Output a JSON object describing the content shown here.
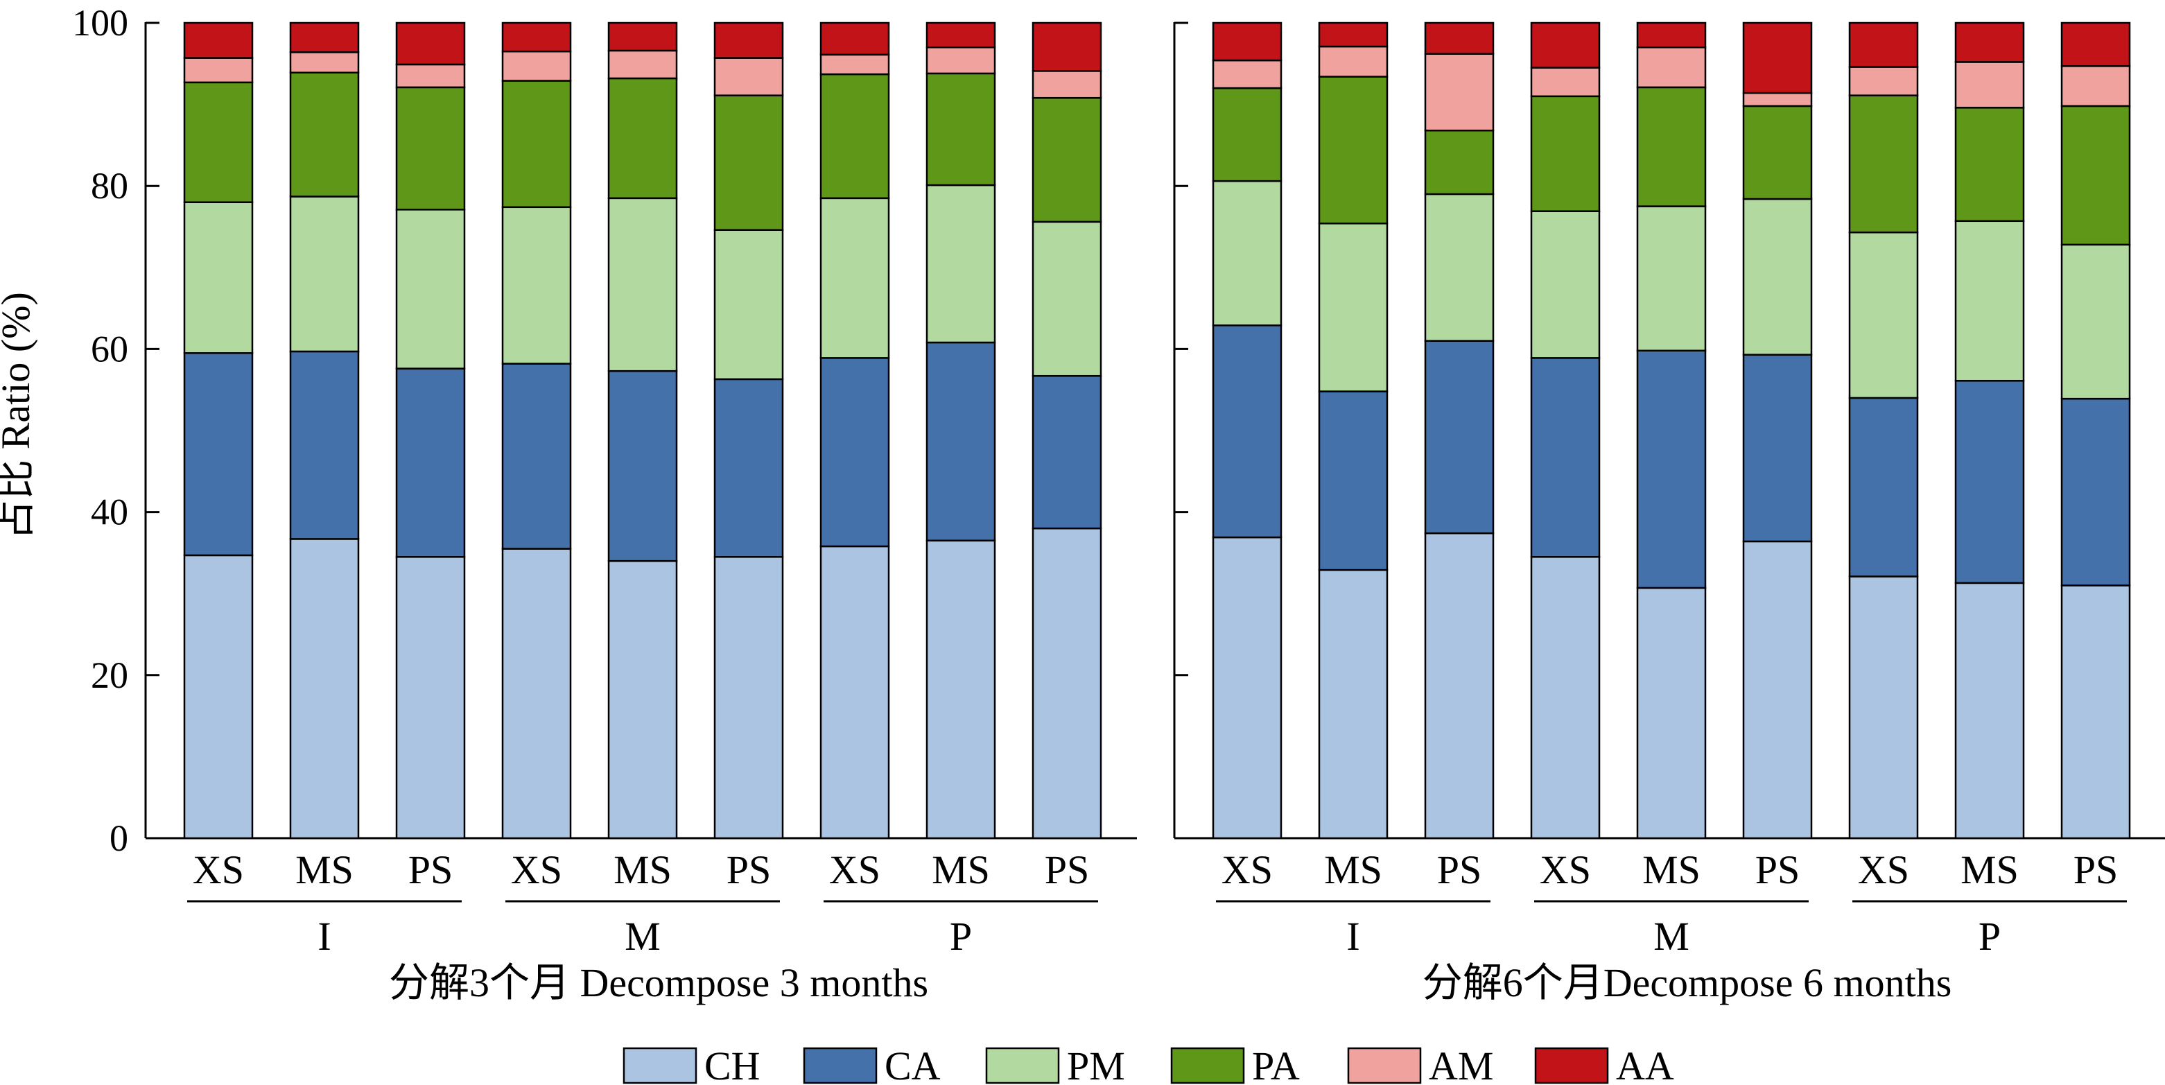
{
  "chart_data": {
    "type": "bar",
    "stacked": true,
    "ylabel": "占比 Ratio (%)",
    "ylim": [
      0,
      100
    ],
    "yticks": [
      0,
      20,
      40,
      60,
      80,
      100
    ],
    "grid": false,
    "legend_position": "bottom",
    "series_names": [
      "CH",
      "CA",
      "PM",
      "PA",
      "AM",
      "AA"
    ],
    "colors": {
      "CH": "#abc4e2",
      "CA": "#4471aa",
      "PM": "#b2daa0",
      "PA": "#5f9719",
      "AM": "#f0a39e",
      "AA": "#c21318"
    },
    "panels": [
      {
        "title": "分解3个月 Decompose 3 months",
        "groups": [
          {
            "label": "I",
            "categories": [
              "XS",
              "MS",
              "PS"
            ],
            "series": {
              "CH": [
                34.7,
                36.7,
                34.5
              ],
              "CA": [
                24.8,
                23.0,
                23.1
              ],
              "PM": [
                18.5,
                19.0,
                19.5
              ],
              "PA": [
                14.7,
                15.2,
                15.0
              ],
              "AM": [
                3.0,
                2.5,
                2.8
              ],
              "AA": [
                4.3,
                3.6,
                5.1
              ]
            }
          },
          {
            "label": "M",
            "categories": [
              "XS",
              "MS",
              "PS"
            ],
            "series": {
              "CH": [
                35.5,
                34.0,
                34.5
              ],
              "CA": [
                22.7,
                23.3,
                21.8
              ],
              "PM": [
                19.2,
                21.2,
                18.3
              ],
              "PA": [
                15.5,
                14.7,
                16.5
              ],
              "AM": [
                3.6,
                3.4,
                4.6
              ],
              "AA": [
                3.5,
                3.4,
                4.3
              ]
            }
          },
          {
            "label": "P",
            "categories": [
              "XS",
              "MS",
              "PS"
            ],
            "series": {
              "CH": [
                35.8,
                36.5,
                38.0
              ],
              "CA": [
                23.1,
                24.3,
                18.7
              ],
              "PM": [
                19.6,
                19.3,
                18.9
              ],
              "PA": [
                15.2,
                13.7,
                15.2
              ],
              "AM": [
                2.4,
                3.2,
                3.3
              ],
              "AA": [
                3.9,
                3.0,
                5.9
              ]
            }
          }
        ]
      },
      {
        "title": "分解6个月Decompose 6 months",
        "groups": [
          {
            "label": "I",
            "categories": [
              "XS",
              "MS",
              "PS"
            ],
            "series": {
              "CH": [
                36.9,
                32.9,
                37.4
              ],
              "CA": [
                26.0,
                21.9,
                23.6
              ],
              "PM": [
                17.7,
                20.6,
                18.0
              ],
              "PA": [
                11.4,
                18.0,
                7.8
              ],
              "AM": [
                3.4,
                3.7,
                9.4
              ],
              "AA": [
                4.6,
                2.9,
                3.8
              ]
            }
          },
          {
            "label": "M",
            "categories": [
              "XS",
              "MS",
              "PS"
            ],
            "series": {
              "CH": [
                34.5,
                30.7,
                36.4
              ],
              "CA": [
                24.4,
                29.1,
                22.9
              ],
              "PM": [
                18.0,
                17.7,
                19.1
              ],
              "PA": [
                14.1,
                14.6,
                11.4
              ],
              "AM": [
                3.5,
                4.9,
                1.6
              ],
              "AA": [
                5.5,
                3.0,
                8.6
              ]
            }
          },
          {
            "label": "P",
            "categories": [
              "XS",
              "MS",
              "PS"
            ],
            "series": {
              "CH": [
                32.1,
                31.3,
                31.0
              ],
              "CA": [
                21.9,
                24.8,
                22.9
              ],
              "PM": [
                20.3,
                19.6,
                18.9
              ],
              "PA": [
                16.8,
                13.9,
                17.0
              ],
              "AM": [
                3.5,
                5.6,
                4.9
              ],
              "AA": [
                5.4,
                4.8,
                5.3
              ]
            }
          }
        ]
      }
    ]
  }
}
